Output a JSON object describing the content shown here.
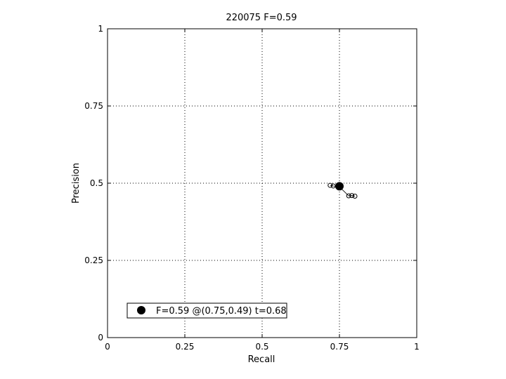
{
  "chart_data": {
    "type": "scatter",
    "title": "220075 F=0.59",
    "xlabel": "Recall",
    "ylabel": "Precision",
    "xlim": [
      0,
      1
    ],
    "ylim": [
      0,
      1
    ],
    "xticks": [
      0,
      0.25,
      0.5,
      0.75,
      1
    ],
    "yticks": [
      0,
      0.25,
      0.5,
      0.75,
      1
    ],
    "xtick_labels": [
      "0",
      "0.25",
      "0.5",
      "0.75",
      "1"
    ],
    "ytick_labels": [
      "0",
      "0.25",
      "0.5",
      "0.75",
      "1"
    ],
    "grid": true,
    "curve": {
      "x": [
        0.72,
        0.73,
        0.75,
        0.78,
        0.79,
        0.8
      ],
      "y": [
        0.493,
        0.491,
        0.488,
        0.459,
        0.46,
        0.458
      ]
    },
    "best_point": {
      "x": 0.75,
      "y": 0.49
    },
    "legend": {
      "position": "bottom-left",
      "entries": [
        "F=0.59 @(0.75,0.49) t=0.68"
      ]
    }
  }
}
